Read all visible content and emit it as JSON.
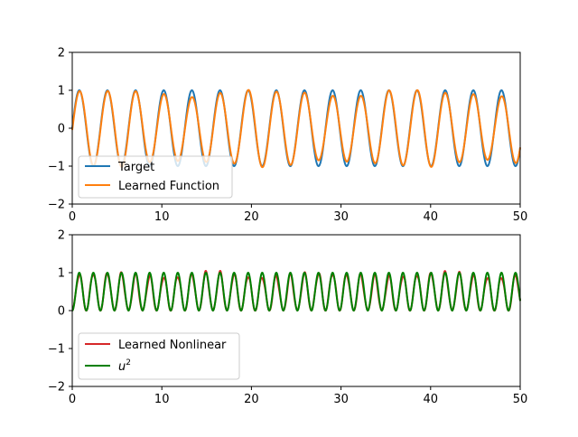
{
  "colors": {
    "target": "#1f77b4",
    "learned_function": "#ff7f0e",
    "learned_nonlinear": "#d62728",
    "u_squared": "#008000"
  },
  "chart_data": [
    {
      "type": "line",
      "xlim": [
        0,
        50
      ],
      "ylim": [
        -2,
        2
      ],
      "xticks": [
        0,
        10,
        20,
        30,
        40,
        50
      ],
      "yticks": [
        -2,
        -1,
        0,
        1,
        2
      ],
      "xtick_labels": [
        "0",
        "10",
        "20",
        "30",
        "40",
        "50"
      ],
      "ytick_labels": [
        "−2",
        "−1",
        "0",
        "1",
        "2"
      ],
      "grid": false,
      "legend_position": "lower-left",
      "series": [
        {
          "name": "Target",
          "color": "#1f77b4",
          "formula": "sin(2.0*x)",
          "x_range": [
            0,
            50
          ]
        },
        {
          "name": "Learned Function",
          "color": "#ff7f0e",
          "formula": "approx sin(2.0*x) with small amplitude error (0.85-1.05)",
          "x_range": [
            0,
            50
          ]
        }
      ]
    },
    {
      "type": "line",
      "xlim": [
        0,
        50
      ],
      "ylim": [
        -2,
        2
      ],
      "xticks": [
        0,
        10,
        20,
        30,
        40,
        50
      ],
      "yticks": [
        -2,
        -1,
        0,
        1,
        2
      ],
      "xtick_labels": [
        "0",
        "10",
        "20",
        "30",
        "40",
        "50"
      ],
      "ytick_labels": [
        "−2",
        "−1",
        "0",
        "1",
        "2"
      ],
      "grid": false,
      "legend_position": "lower-left",
      "series": [
        {
          "name": "Learned Nonlinear",
          "color": "#d62728",
          "formula": "approx sin(2.0*x)^2 with small noise",
          "x_range": [
            0,
            50
          ]
        },
        {
          "name": "u²",
          "color": "#008000",
          "formula": "sin(2.0*x)^2",
          "x_range": [
            0,
            50
          ]
        }
      ]
    }
  ],
  "legends": {
    "top": [
      "Target",
      "Learned Function"
    ],
    "bottom": [
      "Learned Nonlinear",
      "u"
    ],
    "bottom_superscript": "2"
  }
}
